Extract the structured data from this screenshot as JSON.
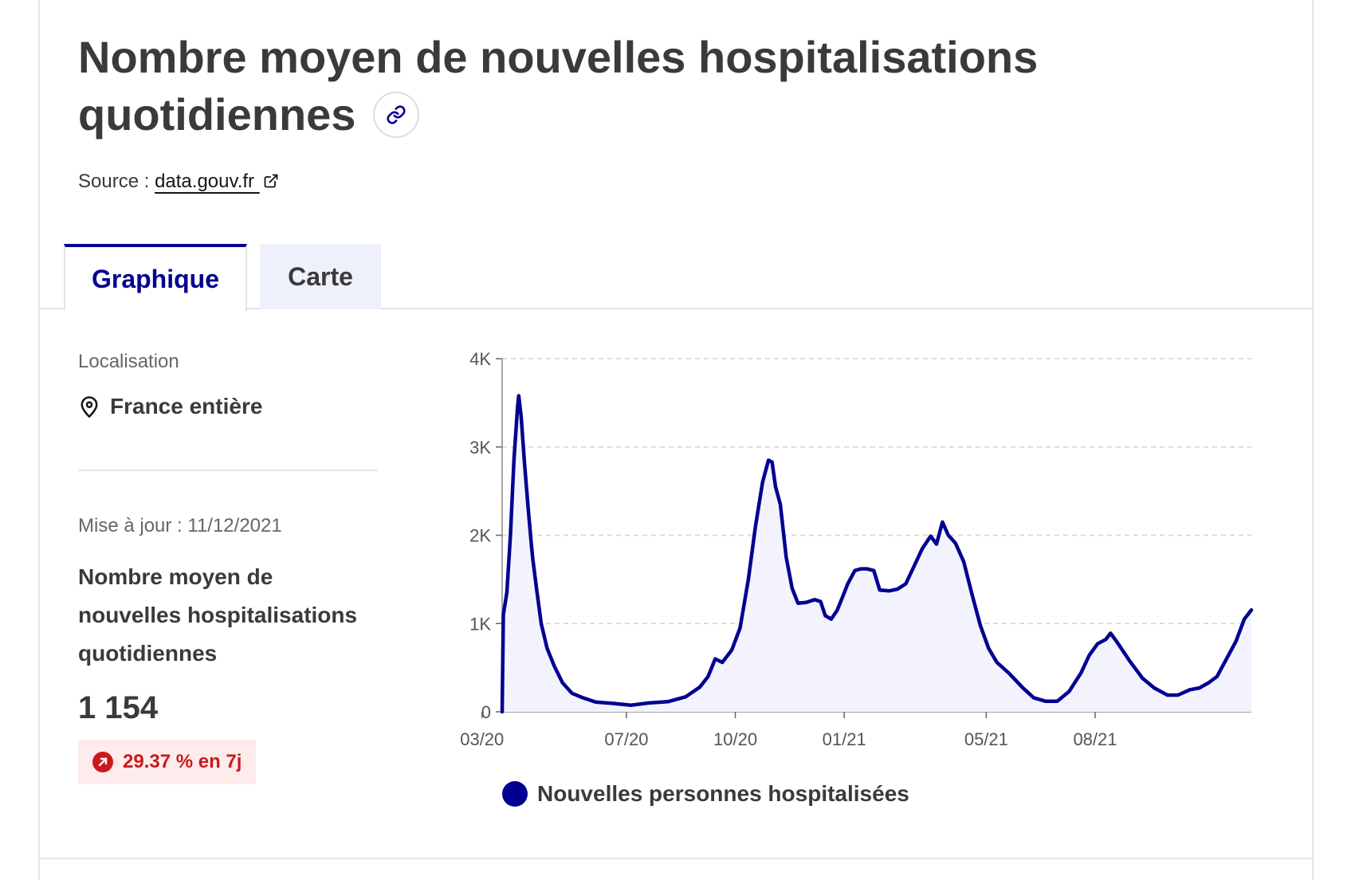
{
  "header": {
    "title": "Nombre moyen de nouvelles hospitalisations quotidiennes",
    "link_icon": "link-icon",
    "source_label": "Source :",
    "source_link": "data.gouv.fr",
    "external_icon": "external-link-icon"
  },
  "tabs": [
    {
      "label": "Graphique",
      "active": true
    },
    {
      "label": "Carte",
      "active": false
    }
  ],
  "sidebar": {
    "location_label": "Localisation",
    "location_icon": "map-pin-icon",
    "location_value": "France entière",
    "updated": "Mise à jour : 11/12/2021",
    "kpi_title": "Nombre moyen de nouvelles hospitalisations quotidiennes",
    "kpi_value": "1 154",
    "kpi_change": "29.37 % en 7j",
    "kpi_change_icon": "arrow-up-right-icon",
    "change_color": "#c9191e"
  },
  "colors": {
    "accent": "#000091",
    "fill": "#f3f3fd"
  },
  "chart_data": {
    "type": "area",
    "grid": true,
    "legend_position": "bottom",
    "ylim": [
      0,
      4000
    ],
    "yticks": [
      0,
      1000,
      2000,
      3000,
      4000
    ],
    "ytick_labels": [
      "0",
      "1K",
      "2K",
      "3K",
      "4K"
    ],
    "xlim": [
      "2020-03-18",
      "2021-12-11"
    ],
    "xticks": [
      "2020-03-01",
      "2020-07-01",
      "2020-10-01",
      "2021-01-01",
      "2021-05-01",
      "2021-08-01"
    ],
    "xtick_labels": [
      "03/20",
      "07/20",
      "10/20",
      "01/21",
      "05/21",
      "08/21"
    ],
    "series": [
      {
        "name": "Nouvelles personnes hospitalisées",
        "color": "#000091",
        "points": [
          [
            "2020-03-18",
            0
          ],
          [
            "2020-03-19",
            1100
          ],
          [
            "2020-03-22",
            1350
          ],
          [
            "2020-03-25",
            2000
          ],
          [
            "2020-03-28",
            2850
          ],
          [
            "2020-03-31",
            3450
          ],
          [
            "2020-04-01",
            3580
          ],
          [
            "2020-04-03",
            3350
          ],
          [
            "2020-04-06",
            2800
          ],
          [
            "2020-04-09",
            2300
          ],
          [
            "2020-04-12",
            1850
          ],
          [
            "2020-04-13",
            1720
          ],
          [
            "2020-04-16",
            1400
          ],
          [
            "2020-04-20",
            1000
          ],
          [
            "2020-04-25",
            720
          ],
          [
            "2020-05-01",
            520
          ],
          [
            "2020-05-08",
            330
          ],
          [
            "2020-05-16",
            210
          ],
          [
            "2020-05-25",
            160
          ],
          [
            "2020-06-05",
            110
          ],
          [
            "2020-06-20",
            95
          ],
          [
            "2020-07-05",
            75
          ],
          [
            "2020-07-20",
            100
          ],
          [
            "2020-08-05",
            115
          ],
          [
            "2020-08-20",
            170
          ],
          [
            "2020-09-01",
            280
          ],
          [
            "2020-09-08",
            400
          ],
          [
            "2020-09-14",
            600
          ],
          [
            "2020-09-20",
            560
          ],
          [
            "2020-09-28",
            700
          ],
          [
            "2020-10-05",
            950
          ],
          [
            "2020-10-12",
            1500
          ],
          [
            "2020-10-18",
            2100
          ],
          [
            "2020-10-24",
            2600
          ],
          [
            "2020-10-29",
            2850
          ],
          [
            "2020-11-01",
            2830
          ],
          [
            "2020-11-04",
            2550
          ],
          [
            "2020-11-08",
            2350
          ],
          [
            "2020-11-13",
            1750
          ],
          [
            "2020-11-18",
            1400
          ],
          [
            "2020-11-23",
            1230
          ],
          [
            "2020-11-30",
            1240
          ],
          [
            "2020-12-07",
            1270
          ],
          [
            "2020-12-12",
            1250
          ],
          [
            "2020-12-16",
            1090
          ],
          [
            "2020-12-21",
            1050
          ],
          [
            "2020-12-26",
            1150
          ],
          [
            "2020-12-30",
            1280
          ],
          [
            "2021-01-04",
            1450
          ],
          [
            "2021-01-10",
            1600
          ],
          [
            "2021-01-15",
            1620
          ],
          [
            "2021-01-20",
            1620
          ],
          [
            "2021-01-26",
            1600
          ],
          [
            "2021-01-31",
            1380
          ],
          [
            "2021-02-08",
            1370
          ],
          [
            "2021-02-15",
            1390
          ],
          [
            "2021-02-22",
            1450
          ],
          [
            "2021-03-01",
            1650
          ],
          [
            "2021-03-08",
            1850
          ],
          [
            "2021-03-15",
            1990
          ],
          [
            "2021-03-20",
            1900
          ],
          [
            "2021-03-25",
            2150
          ],
          [
            "2021-03-30",
            2000
          ],
          [
            "2021-04-05",
            1910
          ],
          [
            "2021-04-12",
            1700
          ],
          [
            "2021-04-19",
            1330
          ],
          [
            "2021-04-26",
            980
          ],
          [
            "2021-05-03",
            720
          ],
          [
            "2021-05-10",
            560
          ],
          [
            "2021-05-20",
            440
          ],
          [
            "2021-06-01",
            270
          ],
          [
            "2021-06-10",
            160
          ],
          [
            "2021-06-20",
            120
          ],
          [
            "2021-06-30",
            120
          ],
          [
            "2021-07-10",
            230
          ],
          [
            "2021-07-20",
            440
          ],
          [
            "2021-07-27",
            640
          ],
          [
            "2021-08-03",
            770
          ],
          [
            "2021-08-10",
            820
          ],
          [
            "2021-08-14",
            890
          ],
          [
            "2021-08-20",
            780
          ],
          [
            "2021-08-30",
            580
          ],
          [
            "2021-09-10",
            380
          ],
          [
            "2021-09-20",
            270
          ],
          [
            "2021-10-01",
            190
          ],
          [
            "2021-10-10",
            190
          ],
          [
            "2021-10-20",
            250
          ],
          [
            "2021-10-28",
            270
          ],
          [
            "2021-11-05",
            330
          ],
          [
            "2021-11-12",
            400
          ],
          [
            "2021-11-20",
            600
          ],
          [
            "2021-11-28",
            800
          ],
          [
            "2021-12-05",
            1050
          ],
          [
            "2021-12-11",
            1154
          ]
        ]
      }
    ]
  }
}
